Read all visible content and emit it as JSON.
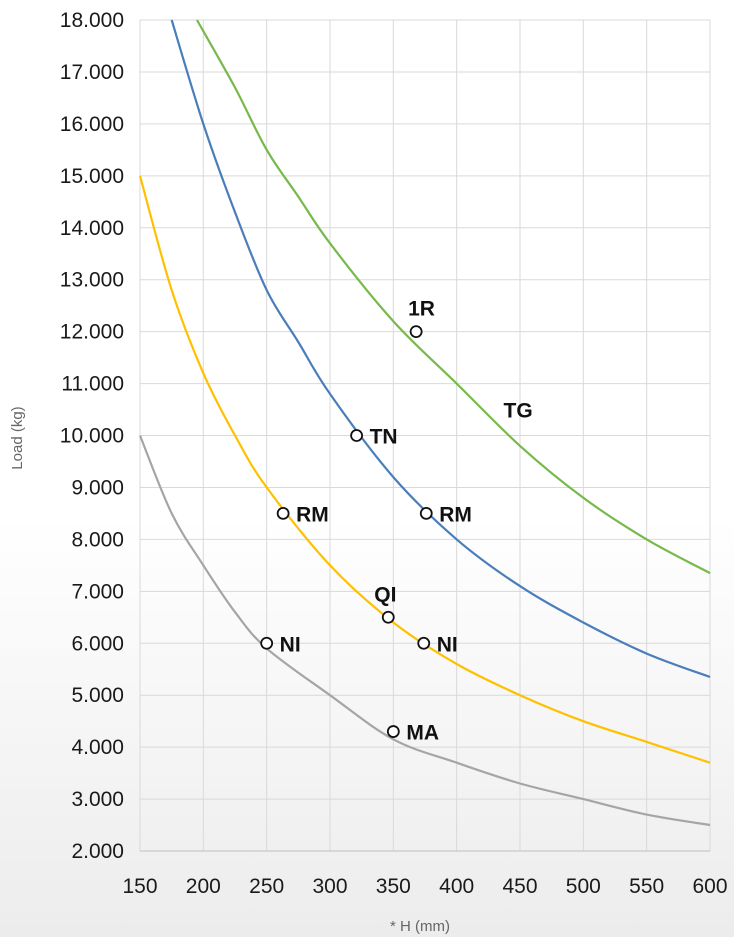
{
  "chart_data": {
    "type": "line",
    "xlabel": "* H (mm)",
    "ylabel": "Load (kg)",
    "xlim": [
      150,
      600
    ],
    "ylim": [
      2000,
      18000
    ],
    "grid": true,
    "x_ticks": [
      150,
      200,
      250,
      300,
      350,
      400,
      450,
      500,
      550,
      600
    ],
    "x_tick_labels": [
      "150",
      "200",
      "250",
      "300",
      "350",
      "400",
      "450",
      "500",
      "550",
      "600"
    ],
    "y_ticks": [
      2000,
      3000,
      4000,
      5000,
      6000,
      7000,
      8000,
      9000,
      10000,
      11000,
      12000,
      13000,
      14000,
      15000,
      16000,
      17000,
      18000
    ],
    "y_tick_labels": [
      "2.000",
      "3.000",
      "4.000",
      "5.000",
      "6.000",
      "7.000",
      "8.000",
      "9.000",
      "10.000",
      "11.000",
      "12.000",
      "13.000",
      "14.000",
      "15.000",
      "16.000",
      "17.000",
      "18.000"
    ],
    "series": [
      {
        "color": "#a5a5a5",
        "x": [
          150,
          175,
          200,
          225,
          250,
          300,
          350,
          400,
          450,
          500,
          550,
          600
        ],
        "y": [
          10000,
          8500,
          7500,
          6600,
          5900,
          5000,
          4150,
          3700,
          3300,
          3000,
          2700,
          2500
        ]
      },
      {
        "color": "#ffc000",
        "x": [
          150,
          175,
          200,
          225,
          250,
          300,
          350,
          400,
          450,
          500,
          550,
          600
        ],
        "y": [
          15000,
          12800,
          11200,
          10000,
          9000,
          7500,
          6400,
          5600,
          5000,
          4500,
          4100,
          3700
        ]
      },
      {
        "color": "#4a7ebb",
        "x": [
          175,
          200,
          225,
          250,
          275,
          300,
          350,
          400,
          450,
          500,
          550,
          600
        ],
        "y": [
          18000,
          16000,
          14300,
          12800,
          11800,
          10800,
          9200,
          8000,
          7100,
          6400,
          5800,
          5350
        ]
      },
      {
        "color": "#77b94a",
        "x": [
          195,
          225,
          250,
          275,
          300,
          350,
          400,
          450,
          500,
          550,
          600
        ],
        "y": [
          18000,
          16700,
          15500,
          14600,
          13700,
          12200,
          11000,
          9800,
          8800,
          8000,
          7350
        ]
      }
    ],
    "points": [
      {
        "label": "1R",
        "x": 368,
        "y": 12000
      },
      {
        "label": "TN",
        "x": 321,
        "y": 10000
      },
      {
        "label": "RM",
        "x": 263,
        "y": 8500
      },
      {
        "label": "RM",
        "x": 376,
        "y": 8500
      },
      {
        "label": "QI",
        "x": 346,
        "y": 6500
      },
      {
        "label": "NI",
        "x": 250,
        "y": 6000
      },
      {
        "label": "NI",
        "x": 374,
        "y": 6000
      },
      {
        "label": "MA",
        "x": 350,
        "y": 4300
      }
    ],
    "annotations": [
      {
        "text": "TG",
        "x": 437,
        "y": 10500
      }
    ]
  }
}
